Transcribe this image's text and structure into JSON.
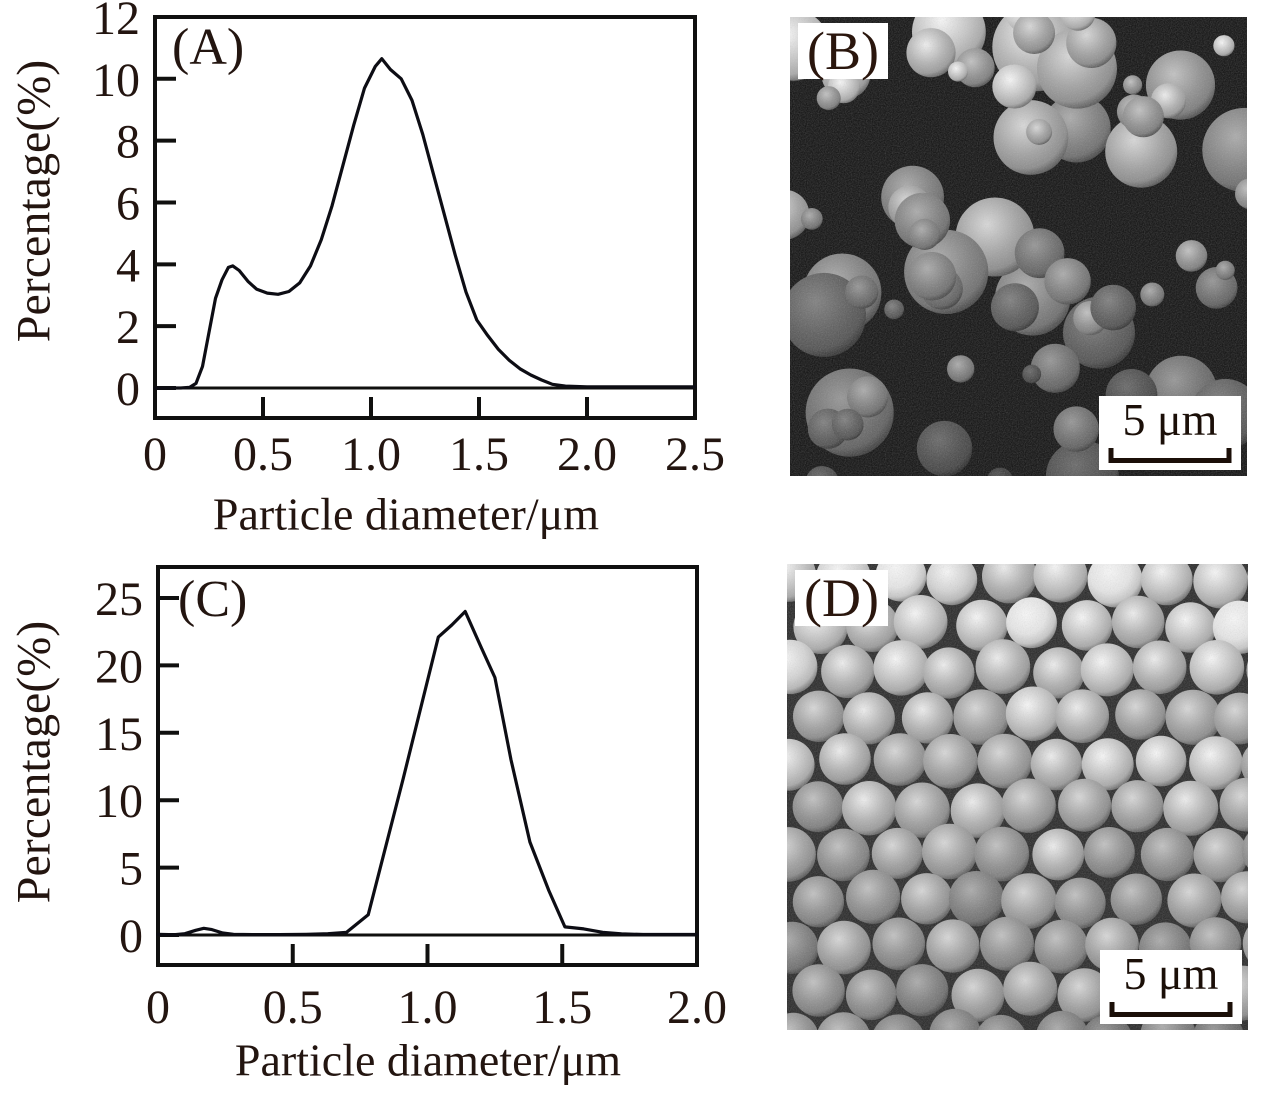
{
  "figure": {
    "background": "#ffffff",
    "text_color": "#231510",
    "line_color": "#10100f",
    "curve_color": "#0d0d14"
  },
  "chart_data": [
    {
      "id": "A",
      "type": "line",
      "panel_label": "(A)",
      "xlabel": "Particle diameter/μm",
      "ylabel": "Percentage(%)",
      "xlim": [
        0,
        2.5
      ],
      "ylim": [
        0,
        12
      ],
      "grid": false,
      "xticks": [
        0,
        0.5,
        1.0,
        1.5,
        2.0,
        2.5
      ],
      "xtick_labels": [
        "0",
        "0.5",
        "1.0",
        "1.5",
        "2.0",
        "2.5"
      ],
      "yticks": [
        0,
        2,
        4,
        6,
        8,
        10,
        12
      ],
      "ytick_labels": [
        "0",
        "2",
        "4",
        "6",
        "8",
        "10",
        "12"
      ],
      "points": [
        [
          0.0,
          0.0
        ],
        [
          0.12,
          0.0
        ],
        [
          0.16,
          0.02
        ],
        [
          0.19,
          0.15
        ],
        [
          0.22,
          0.7
        ],
        [
          0.25,
          1.8
        ],
        [
          0.28,
          2.9
        ],
        [
          0.31,
          3.5
        ],
        [
          0.34,
          3.9
        ],
        [
          0.36,
          3.95
        ],
        [
          0.39,
          3.8
        ],
        [
          0.43,
          3.45
        ],
        [
          0.47,
          3.2
        ],
        [
          0.52,
          3.07
        ],
        [
          0.57,
          3.03
        ],
        [
          0.62,
          3.12
        ],
        [
          0.67,
          3.4
        ],
        [
          0.72,
          3.95
        ],
        [
          0.77,
          4.8
        ],
        [
          0.82,
          5.9
        ],
        [
          0.87,
          7.2
        ],
        [
          0.92,
          8.5
        ],
        [
          0.97,
          9.7
        ],
        [
          1.02,
          10.4
        ],
        [
          1.05,
          10.65
        ],
        [
          1.09,
          10.3
        ],
        [
          1.14,
          10.0
        ],
        [
          1.19,
          9.3
        ],
        [
          1.24,
          8.2
        ],
        [
          1.29,
          6.9
        ],
        [
          1.34,
          5.6
        ],
        [
          1.39,
          4.3
        ],
        [
          1.44,
          3.1
        ],
        [
          1.49,
          2.2
        ],
        [
          1.54,
          1.7
        ],
        [
          1.59,
          1.25
        ],
        [
          1.64,
          0.9
        ],
        [
          1.69,
          0.62
        ],
        [
          1.74,
          0.42
        ],
        [
          1.79,
          0.26
        ],
        [
          1.84,
          0.12
        ],
        [
          1.9,
          0.06
        ],
        [
          2.0,
          0.04
        ],
        [
          2.15,
          0.04
        ],
        [
          2.3,
          0.04
        ],
        [
          2.5,
          0.04
        ]
      ]
    },
    {
      "id": "C",
      "type": "line",
      "panel_label": "(C)",
      "xlabel": "Particle diameter/μm",
      "ylabel": "Percentage(%)",
      "xlim": [
        0,
        2.0
      ],
      "ylim": [
        0,
        27
      ],
      "grid": false,
      "xticks": [
        0,
        0.5,
        1.0,
        1.5,
        2.0
      ],
      "xtick_labels": [
        "0",
        "0.5",
        "1.0",
        "1.5",
        "2.0"
      ],
      "yticks": [
        0,
        5,
        10,
        15,
        20,
        25
      ],
      "ytick_labels": [
        "0",
        "5",
        "10",
        "15",
        "20",
        "25"
      ],
      "points": [
        [
          0.0,
          0.05
        ],
        [
          0.06,
          0.02
        ],
        [
          0.1,
          0.1
        ],
        [
          0.14,
          0.35
        ],
        [
          0.17,
          0.5
        ],
        [
          0.2,
          0.4
        ],
        [
          0.24,
          0.15
        ],
        [
          0.28,
          0.05
        ],
        [
          0.35,
          0.03
        ],
        [
          0.45,
          0.03
        ],
        [
          0.55,
          0.05
        ],
        [
          0.63,
          0.1
        ],
        [
          0.7,
          0.2
        ],
        [
          0.78,
          1.5
        ],
        [
          0.91,
          11.6
        ],
        [
          1.04,
          22.1
        ],
        [
          1.09,
          23.0
        ],
        [
          1.14,
          24.0
        ],
        [
          1.2,
          21.3
        ],
        [
          1.25,
          19.1
        ],
        [
          1.31,
          13.0
        ],
        [
          1.38,
          6.9
        ],
        [
          1.45,
          3.3
        ],
        [
          1.51,
          0.6
        ],
        [
          1.58,
          0.45
        ],
        [
          1.65,
          0.2
        ],
        [
          1.72,
          0.08
        ],
        [
          1.8,
          0.04
        ],
        [
          1.9,
          0.04
        ],
        [
          2.0,
          0.04
        ]
      ]
    }
  ],
  "micrographs": [
    {
      "id": "B",
      "panel_label": "(B)",
      "scale_bar_label": "5 μm",
      "style": "polydisperse"
    },
    {
      "id": "D",
      "panel_label": "(D)",
      "scale_bar_label": "5 μm",
      "style": "monodisperse"
    }
  ]
}
